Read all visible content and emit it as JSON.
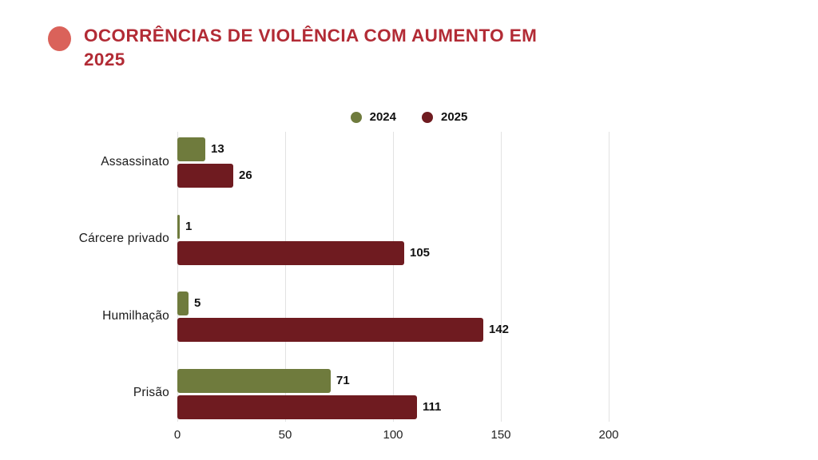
{
  "header": {
    "bullet_color": "#da625a",
    "title_line1": "OCORRÊNCIAS DE VIOLÊNCIA COM AUMENTO EM",
    "title_line2": "2025",
    "title_color": "#b22b35"
  },
  "legend": {
    "items": [
      {
        "label": "2024",
        "color": "#6f7b3d"
      },
      {
        "label": "2025",
        "color": "#6f1b20"
      }
    ]
  },
  "chart_data": {
    "type": "bar",
    "orientation": "horizontal",
    "title": "OCORRÊNCIAS DE VIOLÊNCIA COM AUMENTO EM 2025",
    "categories": [
      "Assassinato",
      "Cárcere privado",
      "Humilhação",
      "Prisão"
    ],
    "series": [
      {
        "name": "2024",
        "color": "#6f7b3d",
        "values": [
          13,
          1,
          5,
          71
        ]
      },
      {
        "name": "2025",
        "color": "#6f1b20",
        "values": [
          26,
          105,
          142,
          111
        ]
      }
    ],
    "xlabel": "",
    "ylabel": "",
    "xlim": [
      0,
      200
    ],
    "x_ticks": [
      0,
      50,
      100,
      150,
      200
    ],
    "grid": "vertical",
    "legend_position": "top-center",
    "value_labels": true,
    "background": "#ffffff"
  }
}
